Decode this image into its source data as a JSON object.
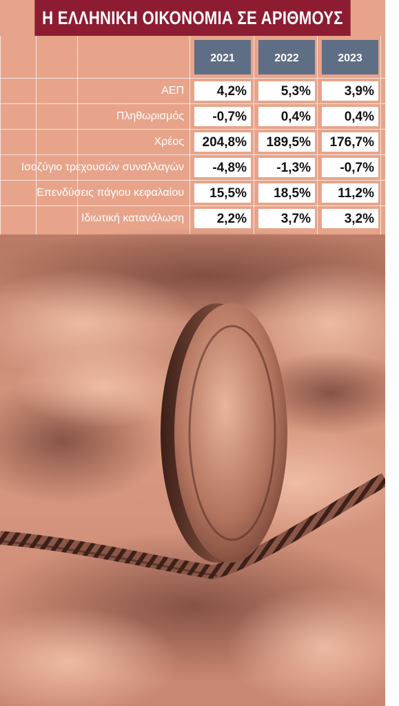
{
  "header": {
    "title": "Η ΕΛΛΗΝΙΚΗ ΟΙΚΟΝΟΜΙΑ ΣΕ ΑΡΙΘΜΟΥΣ"
  },
  "table": {
    "columns": [
      "2021",
      "2022",
      "2023"
    ],
    "rows": [
      {
        "label": "ΑΕΠ",
        "values": [
          "4,2%",
          "5,3%",
          "3,9%"
        ]
      },
      {
        "label": "Πληθωρισμός",
        "values": [
          "-0,7%",
          "0,4%",
          "0,4%"
        ]
      },
      {
        "label": "Χρέος",
        "values": [
          "204,8%",
          "189,5%",
          "176,7%"
        ]
      },
      {
        "label": "Ισοζύγιο τρεχουσών συναλλαγών",
        "values": [
          "-4,8%",
          "-1,3%",
          "-0,7%"
        ]
      },
      {
        "label": "Επενδύσεις πάγιου κεφαλαίου",
        "values": [
          "15,5%",
          "18,5%",
          "11,2%"
        ]
      },
      {
        "label": "Ιδιωτική κατανάλωση",
        "values": [
          "2,2%",
          "3,7%",
          "3,2%"
        ]
      }
    ]
  }
}
